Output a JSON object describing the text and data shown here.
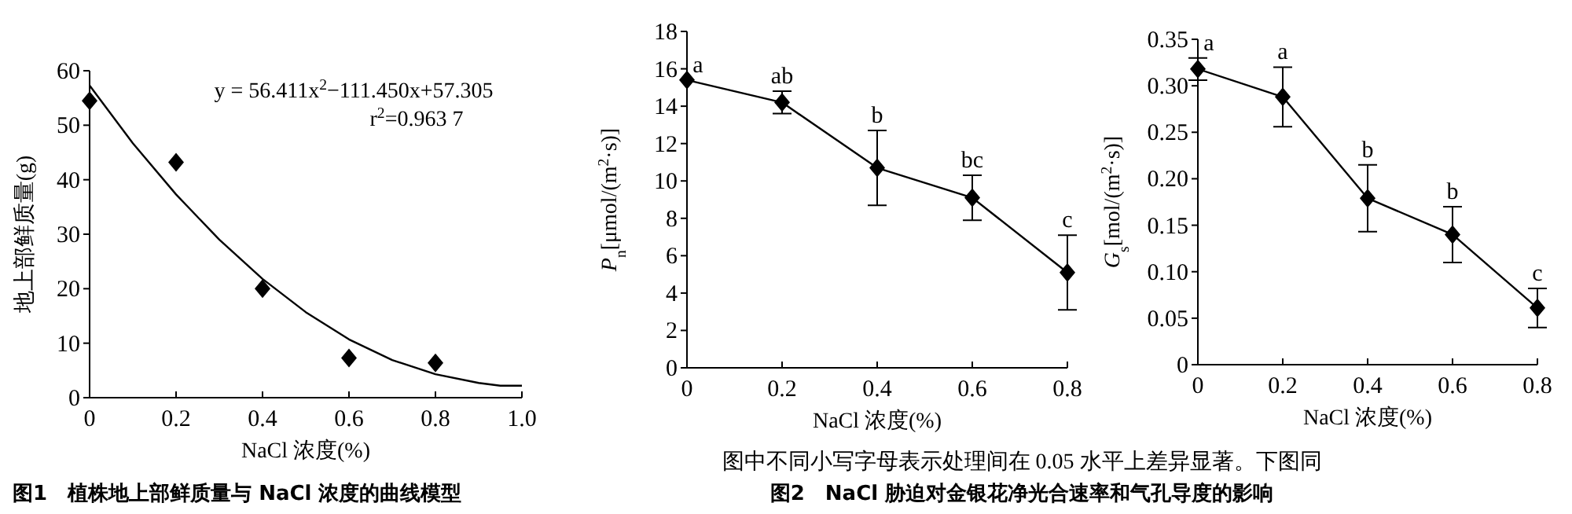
{
  "chart_data": [
    {
      "type": "scatter",
      "title": "**图1　植株地上部鲜质量与 NaCl 浓度的曲线模型**",
      "xlabel": "NaCl 浓度(%)",
      "ylabel": "地上部鲜质量(g)",
      "marker": "diamond",
      "xlim": [
        0,
        1
      ],
      "xticks": [
        0,
        0.2,
        0.4,
        0.6,
        0.8,
        {
          "value": 1,
          "label": "1.0"
        }
      ],
      "ylim": [
        0,
        60
      ],
      "yticks": [
        0,
        10,
        20,
        30,
        40,
        50,
        60
      ],
      "series": [
        {
          "type": "scatter",
          "color": "#000000",
          "x": [
            0,
            0.2,
            0.4,
            0.6,
            0.8
          ],
          "values": [
            54.5,
            43.2,
            20,
            7.3,
            6.4
          ]
        },
        {
          "type": "line",
          "marker": "none",
          "color": "#000000",
          "x": [
            0,
            0.1,
            0.2,
            0.3,
            0.4,
            0.5,
            0.6,
            0.7,
            0.8,
            0.9,
            0.95,
            1.0
          ],
          "values": [
            57.3,
            46.7,
            37.3,
            29.0,
            21.8,
            15.7,
            10.7,
            6.9,
            4.3,
            2.7,
            2.2,
            2.2
          ]
        }
      ],
      "annotations": [
        "y = 56.411x$^{2}$−111.450x+57.305",
        "r$^{2}$=0.963 7"
      ]
    },
    {
      "type": "line",
      "title": "**图2　NaCl 胁迫对金银花净光合速率和气孔导度的影响**",
      "xlabel": "NaCl 浓度(%)",
      "ylabel": "*P*$_{n}$[μmol/(m$^{2}$·s)]",
      "marker": "diamond",
      "xlim": [
        0,
        0.8
      ],
      "xticks": [
        0,
        0.2,
        0.4,
        0.6,
        0.8
      ],
      "ylim": [
        0,
        18
      ],
      "yticks": [
        0,
        2,
        4,
        6,
        8,
        10,
        12,
        14,
        16,
        18
      ],
      "series": [
        {
          "color": "#000000",
          "x": [
            0,
            0.2,
            0.4,
            0.6,
            0.8
          ],
          "values": [
            15.4,
            14.2,
            10.7,
            9.1,
            5.1
          ],
          "errors": [
            null,
            0.6,
            2.0,
            1.2,
            2.0
          ]
        }
      ],
      "annotations": [
        {
          "text": "a",
          "x": 0,
          "y": 15.4
        },
        {
          "text": "ab",
          "x": 0.2,
          "y": 14.8
        },
        {
          "text": "b",
          "x": 0.4,
          "y": 12.7
        },
        {
          "text": "bc",
          "x": 0.6,
          "y": 10.3
        },
        {
          "text": "c",
          "x": 0.8,
          "y": 7.1
        },
        "图中不同小写字母表示处理间在 0.05 水平上差异显著。下图同"
      ]
    },
    {
      "type": "line",
      "xlabel": "NaCl 浓度(%)",
      "ylabel": "*G*$_{s}$[mol/(m$^{2}$·s)]",
      "marker": "diamond",
      "xlim": [
        0,
        0.8
      ],
      "xticks": [
        0,
        0.2,
        0.4,
        0.6,
        0.8
      ],
      "ylim": [
        0,
        0.35
      ],
      "yticks": [
        0,
        {
          "value": 0.05,
          "label": "0.05"
        },
        {
          "value": 0.1,
          "label": "0.10"
        },
        {
          "value": 0.15,
          "label": "0.15"
        },
        {
          "value": 0.2,
          "label": "0.20"
        },
        {
          "value": 0.25,
          "label": "0.25"
        },
        {
          "value": 0.3,
          "label": "0.30"
        },
        {
          "value": 0.35,
          "label": "0.35"
        }
      ],
      "series": [
        {
          "color": "#000000",
          "x": [
            0,
            0.2,
            0.4,
            0.6,
            0.8
          ],
          "values": [
            0.318,
            0.288,
            0.179,
            0.14,
            0.061
          ],
          "errors": [
            0.012,
            0.032,
            0.036,
            0.03,
            0.021
          ]
        }
      ],
      "annotations": [
        {
          "text": "a",
          "x": 0,
          "y": 0.33
        },
        {
          "text": "a",
          "x": 0.2,
          "y": 0.32
        },
        {
          "text": "b",
          "x": 0.4,
          "y": 0.215
        },
        {
          "text": "b",
          "x": 0.6,
          "y": 0.17
        },
        {
          "text": "c",
          "x": 0.8,
          "y": 0.082
        }
      ]
    }
  ]
}
